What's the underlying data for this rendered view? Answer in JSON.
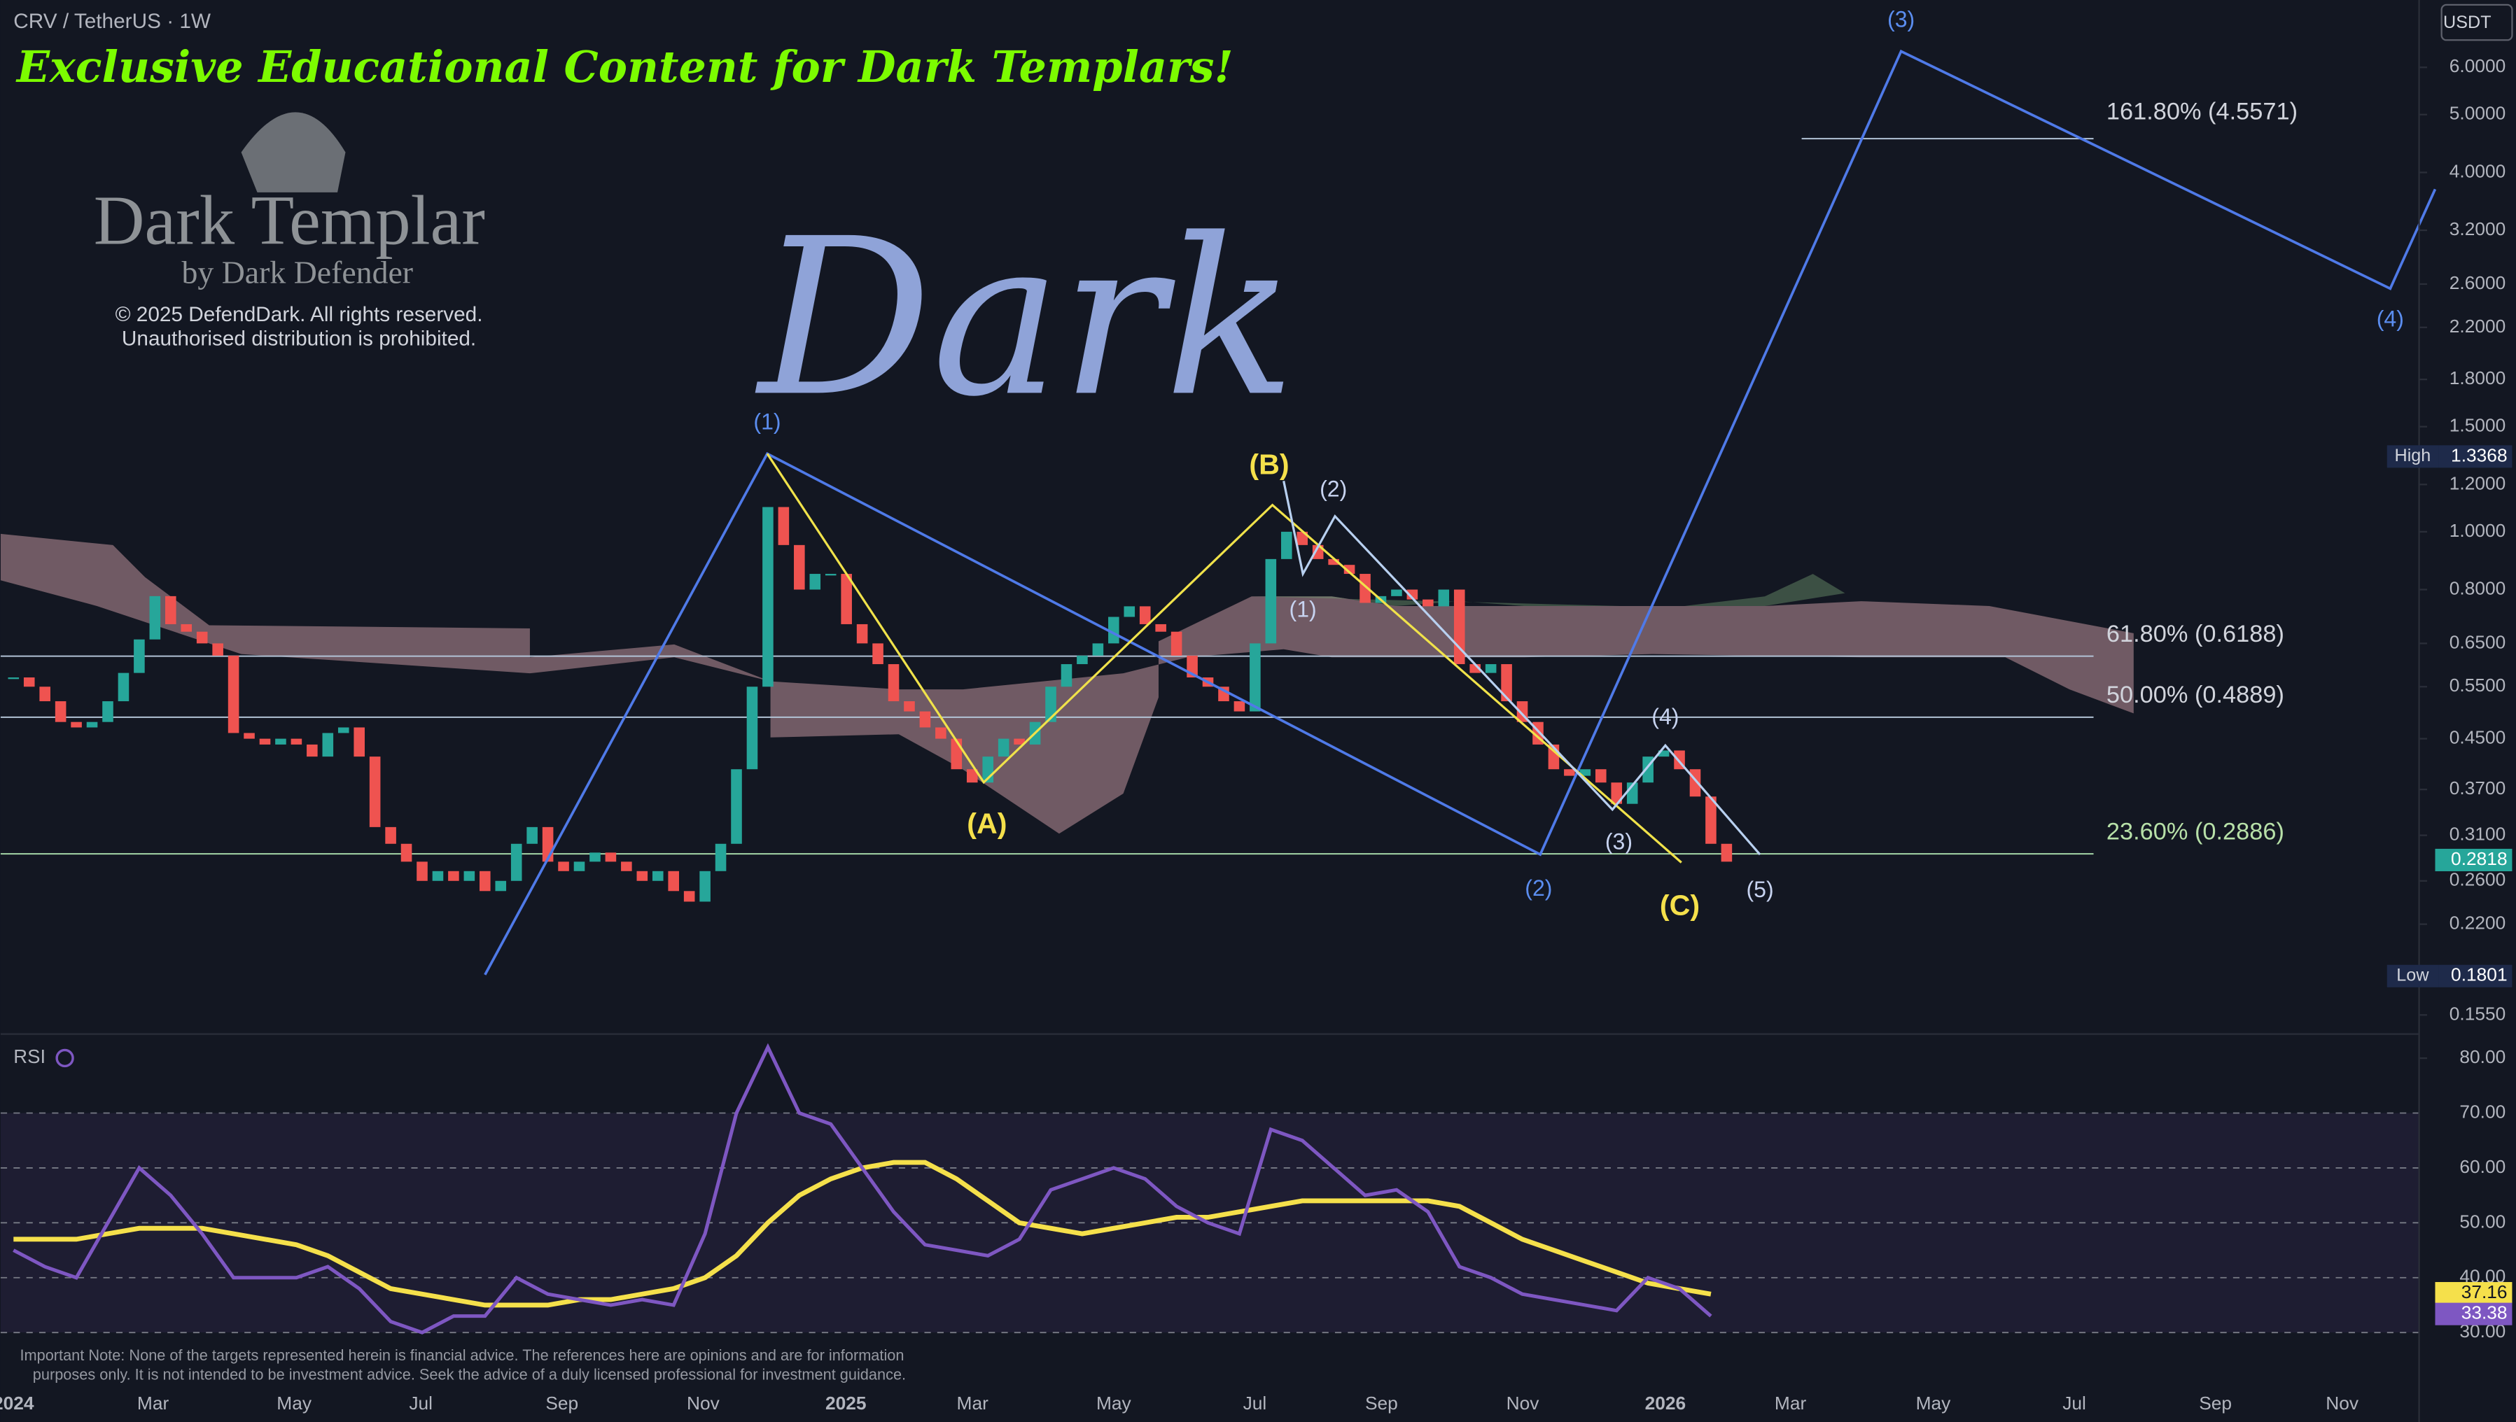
{
  "header": {
    "symbol": "CRV / TetherUS · 1W",
    "currency": "USDT"
  },
  "watermark": {
    "headline": "Exclusive Educational Content for Dark Templars!",
    "brand": "Dark Templar",
    "byline": "by Dark Defender",
    "copyright": "© 2025 DefendDark. All rights reserved.",
    "notice": "Unauthorised distribution is prohibited.",
    "overlay": "Dark"
  },
  "price_panel": {
    "scale": "log",
    "ylim": [
      0.144,
      7.78
    ],
    "yticks": [
      {
        "value": 6,
        "label": "6.0000"
      },
      {
        "value": 5,
        "label": "5.0000"
      },
      {
        "value": 4,
        "label": "4.0000"
      },
      {
        "value": 3.2,
        "label": "3.2000"
      },
      {
        "value": 2.6,
        "label": "2.6000"
      },
      {
        "value": 2.2,
        "label": "2.2000"
      },
      {
        "value": 1.8,
        "label": "1.8000"
      },
      {
        "value": 1.5,
        "label": "1.5000"
      },
      {
        "value": 1.2,
        "label": "1.2000"
      },
      {
        "value": 1,
        "label": "1.0000"
      },
      {
        "value": 0.8,
        "label": "0.8000"
      },
      {
        "value": 0.65,
        "label": "0.6500"
      },
      {
        "value": 0.55,
        "label": "0.5500"
      },
      {
        "value": 0.45,
        "label": "0.4500"
      },
      {
        "value": 0.37,
        "label": "0.3700"
      },
      {
        "value": 0.31,
        "label": "0.3100"
      },
      {
        "value": 0.26,
        "label": "0.2600"
      },
      {
        "value": 0.22,
        "label": "0.2200"
      },
      {
        "value": 0.155,
        "label": "0.1550"
      }
    ],
    "closes": [
      0.57,
      0.55,
      0.52,
      0.48,
      0.47,
      0.48,
      0.52,
      0.58,
      0.66,
      0.78,
      0.7,
      0.68,
      0.65,
      0.62,
      0.46,
      0.45,
      0.44,
      0.45,
      0.44,
      0.42,
      0.46,
      0.47,
      0.42,
      0.32,
      0.3,
      0.28,
      0.26,
      0.27,
      0.26,
      0.27,
      0.25,
      0.26,
      0.3,
      0.32,
      0.28,
      0.27,
      0.28,
      0.29,
      0.28,
      0.27,
      0.26,
      0.27,
      0.25,
      0.24,
      0.27,
      0.3,
      0.4,
      0.55,
      1.1,
      0.95,
      0.8,
      0.85,
      0.85,
      0.7,
      0.65,
      0.6,
      0.52,
      0.5,
      0.47,
      0.45,
      0.4,
      0.38,
      0.42,
      0.45,
      0.44,
      0.48,
      0.55,
      0.6,
      0.62,
      0.65,
      0.72,
      0.75,
      0.7,
      0.68,
      0.62,
      0.57,
      0.55,
      0.52,
      0.5,
      0.65,
      0.9,
      1.0,
      0.95,
      0.9,
      0.88,
      0.85,
      0.76,
      0.78,
      0.8,
      0.77,
      0.75,
      0.8,
      0.6,
      0.58,
      0.6,
      0.52,
      0.48,
      0.44,
      0.4,
      0.39,
      0.4,
      0.38,
      0.35,
      0.38,
      0.42,
      0.43,
      0.4,
      0.36,
      0.3,
      0.28
    ],
    "wave_labels": [
      "(1)",
      "(B)",
      "(2)",
      "(1)",
      "(A)",
      "(2)",
      "(3)",
      "(4)",
      "(C)",
      "(5)",
      "(3)",
      "(4)"
    ],
    "fib_levels": [
      {
        "label": "161.80% (4.5571)",
        "price": 4.5571
      },
      {
        "label": "61.80% (0.6188)",
        "price": 0.6188
      },
      {
        "label": "50.00% (0.4889)",
        "price": 0.4889
      },
      {
        "label": "23.60% (0.2886)",
        "price": 0.2886
      }
    ],
    "high": {
      "label": "High",
      "value": 1.3368
    },
    "low": {
      "label": "Low",
      "value": 0.1801
    },
    "last": 0.2818
  },
  "rsi_panel": {
    "title": "RSI",
    "ylim": [
      21,
      84.4
    ],
    "yticks": [
      {
        "value": 80,
        "label": "80.00"
      },
      {
        "value": 70,
        "label": "70.00"
      },
      {
        "value": 60,
        "label": "60.00"
      },
      {
        "value": 50,
        "label": "50.00"
      },
      {
        "value": 40,
        "label": "40.00"
      },
      {
        "value": 30,
        "label": "30.00"
      }
    ],
    "rsi": [
      45,
      42,
      40,
      50,
      60,
      55,
      48,
      40,
      40,
      40,
      42,
      38,
      32,
      30,
      33,
      33,
      40,
      37,
      36,
      35,
      36,
      35,
      48,
      70,
      82,
      70,
      68,
      60,
      52,
      46,
      45,
      44,
      47,
      56,
      58,
      60,
      58,
      53,
      50,
      48,
      67,
      65,
      60,
      55,
      56,
      52,
      42,
      40,
      37,
      36,
      35,
      34,
      40,
      38,
      33
    ],
    "rsi_ma": [
      47,
      47,
      47,
      48,
      49,
      49,
      49,
      48,
      47,
      46,
      44,
      41,
      38,
      37,
      36,
      35,
      35,
      35,
      36,
      36,
      37,
      38,
      40,
      44,
      50,
      55,
      58,
      60,
      61,
      61,
      58,
      54,
      50,
      49,
      48,
      49,
      50,
      51,
      51,
      52,
      53,
      54,
      54,
      54,
      54,
      54,
      53,
      50,
      47,
      45,
      43,
      41,
      39,
      38,
      37
    ],
    "ma_last": 37.16,
    "rsi_last": 33.38
  },
  "time_axis": [
    "2024",
    "Mar",
    "May",
    "Jul",
    "Sep",
    "Nov",
    "2025",
    "Mar",
    "May",
    "Jul",
    "Sep",
    "Nov",
    "2026",
    "Mar",
    "May",
    "Jul",
    "Sep",
    "Nov"
  ],
  "disclaimer": [
    "Important Note: None of the targets represented herein is financial advice. The references here are opinions and are for information",
    "purposes only. It is not intended to be investment advice. Seek the advice of a duly licensed professional for investment guidance."
  ]
}
